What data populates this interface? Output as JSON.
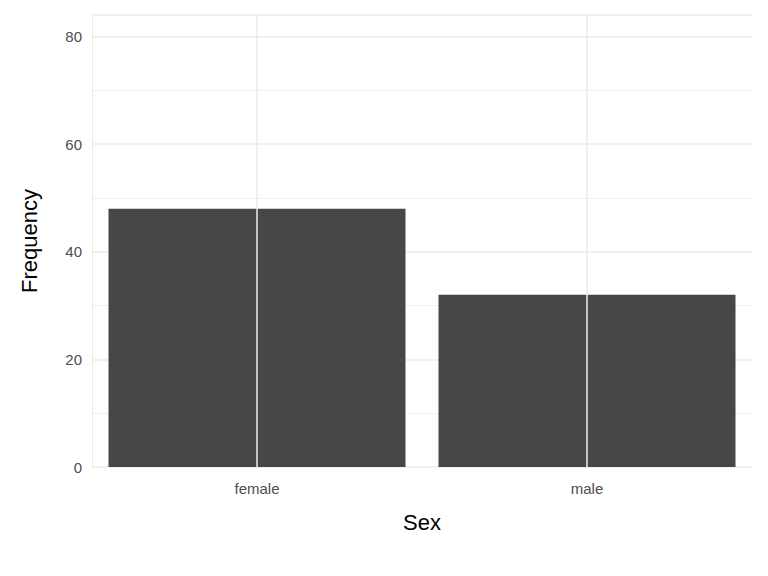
{
  "chart_data": {
    "type": "bar",
    "categories": [
      "female",
      "male"
    ],
    "values": [
      48,
      32
    ],
    "color": "#474747",
    "xlabel": "Sex",
    "ylabel": "Frequency",
    "ylim": [
      0,
      84
    ],
    "yticks": [
      0,
      20,
      40,
      60,
      80
    ],
    "grid": true
  }
}
